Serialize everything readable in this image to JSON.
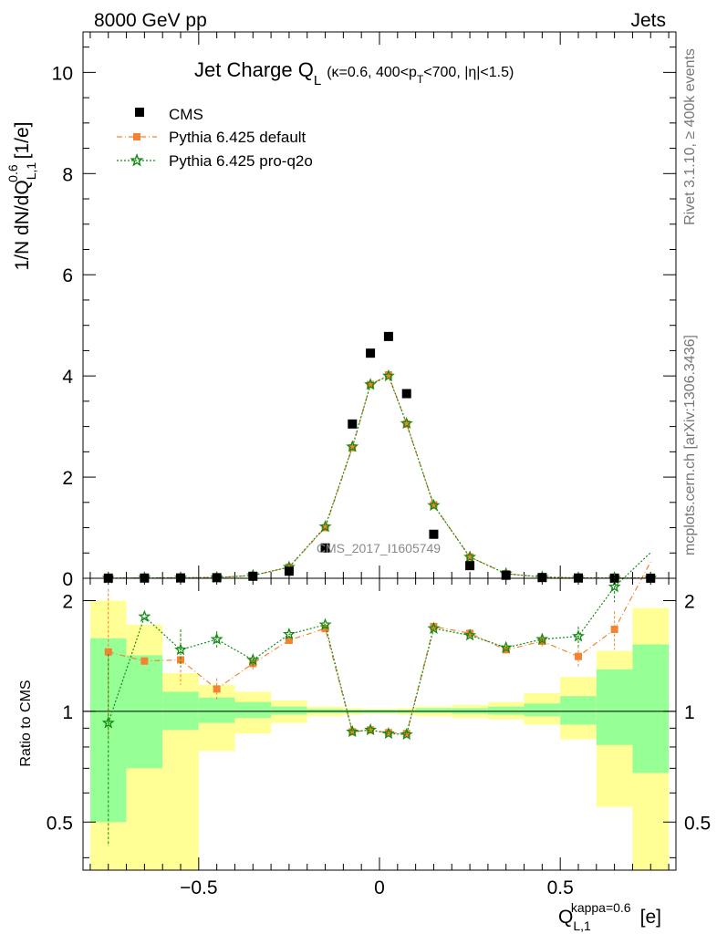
{
  "header": {
    "left": "8000 GeV pp",
    "right": "Jets",
    "watermark": "CMS_2017_I1605749"
  },
  "side_labels": {
    "rivet": "Rivet 3.1.10, ≥ 400k events",
    "mcplots": "mcplots.cern.ch [arXiv:1306.3436]"
  },
  "colors": {
    "cms": "#000000",
    "default": "#f58231",
    "pro_q2o": "#118c11",
    "band_yellow": "#ffff96",
    "band_green": "#96ff96"
  },
  "chart_data": [
    {
      "type": "scatter",
      "title": "Jet Charge Q_L (κ=0.6, 400<p_T<700, |η|<1.5)",
      "title_main": "Jet Charge Q",
      "title_main_sub": "L",
      "title_detail": "(κ=0.6, 400<p",
      "title_detail_sub": "T",
      "title_detail_end": "<700, |η|<1.5)",
      "ylabel": "1/N dN/dQ",
      "ylabel_sup": "0.6",
      "ylabel_sub": "L,1",
      "ylabel_unit": "[1/e]",
      "ylim": [
        0,
        10.8
      ],
      "xlim": [
        -0.82,
        0.82
      ],
      "yticks": [
        0,
        2,
        4,
        6,
        8,
        10
      ],
      "legend_position": "top-left",
      "legend": [
        "CMS",
        "Pythia 6.425 default",
        "Pythia 6.425 pro-q2o"
      ],
      "x": [
        -0.75,
        -0.65,
        -0.55,
        -0.45,
        -0.35,
        -0.25,
        -0.15,
        -0.075,
        -0.025,
        0.025,
        0.075,
        0.15,
        0.25,
        0.35,
        0.45,
        0.55,
        0.65,
        0.75
      ],
      "series": [
        {
          "name": "CMS",
          "marker": "square",
          "values": [
            0.003,
            0.005,
            0.007,
            0.012,
            0.04,
            0.14,
            0.6,
            3.05,
            4.45,
            4.78,
            3.65,
            0.87,
            0.25,
            0.06,
            0.015,
            0.006,
            0.003,
            0.002
          ]
        },
        {
          "name": "Pythia 6.425 default",
          "marker": "square",
          "values": [
            0.004,
            0.007,
            0.01,
            0.014,
            0.055,
            0.22,
            1.0,
            2.58,
            3.83,
            4.02,
            3.05,
            1.45,
            0.42,
            0.09,
            0.023,
            0.008,
            0.005,
            0.003
          ]
        },
        {
          "name": "Pythia 6.425 pro-q2o",
          "marker": "star",
          "values": [
            0.003,
            0.008,
            0.01,
            0.015,
            0.056,
            0.22,
            1.02,
            2.6,
            3.83,
            4.0,
            3.06,
            1.44,
            0.42,
            0.09,
            0.023,
            0.008,
            0.006,
            0.004
          ]
        }
      ]
    },
    {
      "type": "line",
      "ylabel": "Ratio to CMS",
      "xlabel": "Q",
      "xlabel_sup": "kappa=0.6",
      "xlabel_sub": "L,1",
      "xlabel_unit": "[e]",
      "ylim": [
        0.37,
        2.3
      ],
      "ylog": true,
      "xlim": [
        -0.82,
        0.82
      ],
      "yticks": [
        0.5,
        1,
        2
      ],
      "ytick_labels": [
        "0.5",
        "1",
        "2"
      ],
      "xticks": [
        -0.5,
        0,
        0.5
      ],
      "xtick_labels": [
        "−0.5",
        "0",
        "0.5"
      ],
      "bins": [
        [
          -0.8,
          -0.7
        ],
        [
          -0.7,
          -0.6
        ],
        [
          -0.6,
          -0.5
        ],
        [
          -0.5,
          -0.4
        ],
        [
          -0.4,
          -0.3
        ],
        [
          -0.3,
          -0.2
        ],
        [
          -0.2,
          -0.1
        ],
        [
          -0.1,
          -0.05
        ],
        [
          -0.05,
          0.0
        ],
        [
          0.0,
          0.05
        ],
        [
          0.05,
          0.1
        ],
        [
          0.1,
          0.2
        ],
        [
          0.2,
          0.3
        ],
        [
          0.3,
          0.4
        ],
        [
          0.4,
          0.5
        ],
        [
          0.5,
          0.6
        ],
        [
          0.6,
          0.7
        ],
        [
          0.7,
          0.8
        ]
      ],
      "band_yellow": [
        [
          0.3,
          2.0
        ],
        [
          0.3,
          1.72
        ],
        [
          0.3,
          1.27
        ],
        [
          0.78,
          1.18
        ],
        [
          0.87,
          1.13
        ],
        [
          0.93,
          1.07
        ],
        [
          0.97,
          1.03
        ],
        [
          0.98,
          1.02
        ],
        [
          0.985,
          1.015
        ],
        [
          0.985,
          1.015
        ],
        [
          0.98,
          1.02
        ],
        [
          0.97,
          1.03
        ],
        [
          0.96,
          1.04
        ],
        [
          0.95,
          1.06
        ],
        [
          0.92,
          1.12
        ],
        [
          0.84,
          1.24
        ],
        [
          0.55,
          1.46
        ],
        [
          0.3,
          1.91
        ]
      ],
      "band_green": [
        [
          0.5,
          1.58
        ],
        [
          0.7,
          1.42
        ],
        [
          0.89,
          1.13
        ],
        [
          0.93,
          1.09
        ],
        [
          0.96,
          1.06
        ],
        [
          0.98,
          1.03
        ],
        [
          0.99,
          1.015
        ],
        [
          0.99,
          1.01
        ],
        [
          0.99,
          1.01
        ],
        [
          0.99,
          1.01
        ],
        [
          0.99,
          1.01
        ],
        [
          0.99,
          1.02
        ],
        [
          0.985,
          1.02
        ],
        [
          0.98,
          1.03
        ],
        [
          0.97,
          1.05
        ],
        [
          0.92,
          1.1
        ],
        [
          0.81,
          1.3
        ],
        [
          0.68,
          1.52
        ]
      ],
      "series": [
        {
          "name": "Pythia 6.425 default",
          "marker": "square",
          "values": [
            1.45,
            1.37,
            1.38,
            1.15,
            1.35,
            1.56,
            1.68,
            0.88,
            0.89,
            0.875,
            0.87,
            1.7,
            1.63,
            1.47,
            1.55,
            1.41,
            1.67,
            2.55
          ],
          "err_lo": [
            0.6,
            0.0,
            0.2,
            0.08,
            0.05,
            0.0,
            0.0,
            0.0,
            0.0,
            0.0,
            0.0,
            0.0,
            0.0,
            0.0,
            0.05,
            0.1,
            0.2,
            0.0
          ],
          "err_hi": [
            0.7,
            0.0,
            0.25,
            0.08,
            0.05,
            0.0,
            0.0,
            0.0,
            0.0,
            0.0,
            0.0,
            0.0,
            0.0,
            0.0,
            0.05,
            0.1,
            0.2,
            0.0
          ]
        },
        {
          "name": "Pythia 6.425 pro-q2o",
          "marker": "star",
          "values": [
            0.93,
            1.81,
            1.47,
            1.57,
            1.38,
            1.62,
            1.72,
            0.88,
            0.89,
            0.87,
            0.865,
            1.68,
            1.61,
            1.49,
            1.57,
            1.6,
            2.18,
            2.7
          ],
          "err_lo": [
            0.5,
            0.0,
            0.15,
            0.08,
            0.05,
            0.0,
            0.0,
            0.0,
            0.0,
            0.0,
            0.0,
            0.0,
            0.0,
            0.0,
            0.05,
            0.1,
            0.2,
            0.0
          ],
          "err_hi": [
            0.5,
            0.0,
            0.2,
            0.08,
            0.05,
            0.0,
            0.0,
            0.0,
            0.0,
            0.0,
            0.0,
            0.0,
            0.0,
            0.0,
            0.05,
            0.1,
            0.2,
            0.0
          ]
        }
      ]
    }
  ]
}
